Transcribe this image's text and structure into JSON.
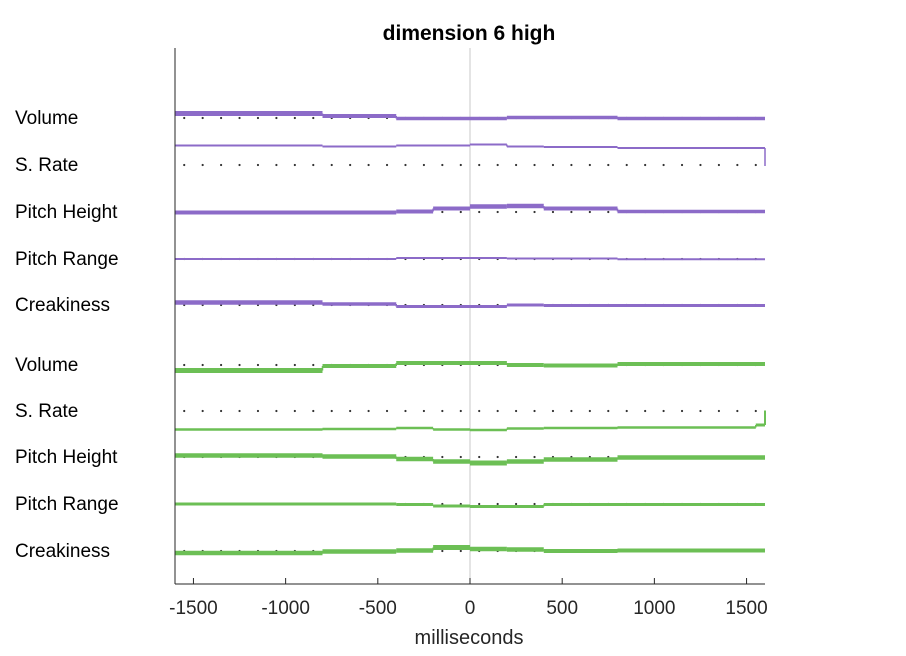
{
  "chart_data": {
    "type": "line",
    "title": "dimension  6 high",
    "xlabel": "milliseconds",
    "ylabel": "",
    "xlim": [
      -1600,
      1600
    ],
    "xticks": [
      -1500,
      -1000,
      -500,
      0,
      500,
      1000,
      1500
    ],
    "xtick_labels": [
      "-1500",
      "-1000",
      "-500",
      "0",
      "500",
      "1000",
      "1500"
    ],
    "zero_line": true,
    "colors": {
      "high": "#8c6bc8",
      "low": "#6cbf55",
      "axis": "#262626",
      "zero_line": "#c8c8c8",
      "dots": "#333333"
    },
    "groups": [
      {
        "color": "high",
        "rows": [
          {
            "label": "Volume",
            "segments": [
              [
                -1600,
                -800,
                0.45,
                5
              ],
              [
                -800,
                -400,
                0.2,
                4
              ],
              [
                -400,
                200,
                -0.05,
                3.5
              ],
              [
                200,
                800,
                0.05,
                3.5
              ],
              [
                800,
                1600,
                -0.05,
                3.5
              ]
            ]
          },
          {
            "label": "S. Rate",
            "segments": [
              [
                -1600,
                -800,
                1.95,
                2
              ],
              [
                -800,
                -400,
                1.85,
                2
              ],
              [
                -400,
                0,
                1.95,
                2
              ],
              [
                0,
                200,
                2.05,
                2
              ],
              [
                200,
                400,
                1.85,
                2
              ],
              [
                400,
                800,
                1.8,
                2
              ],
              [
                800,
                1600,
                1.7,
                2
              ]
            ],
            "end_drop": -0.1
          },
          {
            "label": "Pitch Height",
            "segments": [
              [
                -1600,
                -800,
                -0.05,
                4
              ],
              [
                -800,
                -400,
                -0.05,
                4
              ],
              [
                -400,
                -200,
                0.05,
                4
              ],
              [
                -200,
                0,
                0.35,
                4
              ],
              [
                0,
                200,
                0.55,
                4.5
              ],
              [
                200,
                400,
                0.6,
                4.5
              ],
              [
                400,
                800,
                0.35,
                4
              ],
              [
                800,
                1600,
                0.05,
                3.5
              ]
            ]
          },
          {
            "label": "Pitch Range",
            "segments": [
              [
                -1600,
                -800,
                0,
                2
              ],
              [
                -800,
                -400,
                0,
                2
              ],
              [
                -400,
                200,
                0.1,
                2
              ],
              [
                200,
                800,
                0.05,
                2
              ],
              [
                800,
                1600,
                -0.02,
                2
              ]
            ]
          },
          {
            "label": "Creakiness",
            "segments": [
              [
                -1600,
                -800,
                0.25,
                4.5
              ],
              [
                -800,
                -400,
                0.1,
                3.5
              ],
              [
                -400,
                200,
                -0.15,
                3
              ],
              [
                200,
                400,
                0,
                3
              ],
              [
                400,
                800,
                -0.05,
                3
              ],
              [
                800,
                1600,
                -0.05,
                3
              ]
            ]
          }
        ]
      },
      {
        "color": "low",
        "rows": [
          {
            "label": "Volume",
            "segments": [
              [
                -1600,
                -800,
                -0.55,
                5
              ],
              [
                -800,
                -400,
                -0.1,
                4
              ],
              [
                -400,
                200,
                0.2,
                4
              ],
              [
                200,
                400,
                0,
                4
              ],
              [
                400,
                800,
                -0.05,
                4
              ],
              [
                800,
                1600,
                0.1,
                4
              ]
            ]
          },
          {
            "label": "S. Rate",
            "segments": [
              [
                -1600,
                -800,
                -1.85,
                2.5
              ],
              [
                -800,
                -400,
                -1.8,
                2.5
              ],
              [
                -400,
                -200,
                -1.7,
                2.5
              ],
              [
                -200,
                0,
                -1.85,
                2.5
              ],
              [
                0,
                200,
                -1.9,
                2.5
              ],
              [
                200,
                400,
                -1.75,
                2.5
              ],
              [
                400,
                800,
                -1.7,
                2.5
              ],
              [
                800,
                1550,
                -1.65,
                2.5
              ],
              [
                1550,
                1600,
                -1.4,
                3
              ]
            ],
            "end_rise": 0.05
          },
          {
            "label": "Pitch Height",
            "segments": [
              [
                -1600,
                -800,
                0.15,
                4.5
              ],
              [
                -800,
                -400,
                0.05,
                4.5
              ],
              [
                -400,
                -200,
                -0.2,
                4.5
              ],
              [
                -200,
                0,
                -0.45,
                4.5
              ],
              [
                0,
                200,
                -0.6,
                5
              ],
              [
                200,
                400,
                -0.45,
                4.5
              ],
              [
                400,
                800,
                -0.25,
                4.5
              ],
              [
                800,
                1600,
                -0.05,
                4.5
              ]
            ]
          },
          {
            "label": "Pitch Range",
            "segments": [
              [
                -1600,
                -800,
                0,
                3
              ],
              [
                -800,
                -400,
                0,
                3
              ],
              [
                -400,
                -200,
                -0.05,
                3
              ],
              [
                -200,
                0,
                -0.2,
                3
              ],
              [
                0,
                400,
                -0.25,
                3
              ],
              [
                400,
                800,
                -0.05,
                3
              ],
              [
                800,
                1600,
                -0.05,
                3
              ]
            ]
          },
          {
            "label": "Creakiness",
            "segments": [
              [
                -1600,
                -800,
                -0.2,
                4.5
              ],
              [
                -800,
                -400,
                -0.05,
                4.5
              ],
              [
                -400,
                -200,
                0.05,
                4.5
              ],
              [
                -200,
                0,
                0.35,
                5
              ],
              [
                0,
                200,
                0.2,
                4.5
              ],
              [
                200,
                400,
                0.15,
                4.5
              ],
              [
                400,
                800,
                0,
                4
              ],
              [
                800,
                1600,
                0.05,
                4
              ]
            ]
          }
        ]
      }
    ]
  }
}
